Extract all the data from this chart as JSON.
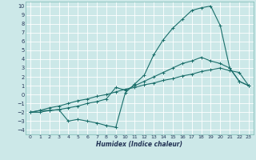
{
  "xlabel": "Humidex (Indice chaleur)",
  "bg_color": "#cce8e8",
  "grid_color": "#aad4d4",
  "line_color": "#1a6e6a",
  "xlim": [
    -0.5,
    23.5
  ],
  "ylim": [
    -4.5,
    10.5
  ],
  "xticks": [
    0,
    1,
    2,
    3,
    4,
    5,
    6,
    7,
    8,
    9,
    10,
    11,
    12,
    13,
    14,
    15,
    16,
    17,
    18,
    19,
    20,
    21,
    22,
    23
  ],
  "yticks": [
    -4,
    -3,
    -2,
    -1,
    0,
    1,
    2,
    3,
    4,
    5,
    6,
    7,
    8,
    9,
    10
  ],
  "line1_x": [
    0,
    1,
    2,
    3,
    4,
    5,
    6,
    7,
    8,
    9,
    10,
    11,
    12,
    13,
    14,
    15,
    16,
    17,
    18,
    19,
    20,
    21,
    22,
    23
  ],
  "line1_y": [
    -2,
    -2,
    -1.8,
    -1.7,
    -3,
    -2.8,
    -3,
    -3.2,
    -3.5,
    -3.7,
    0.2,
    1.2,
    2.2,
    4.5,
    6.2,
    7.5,
    8.5,
    9.5,
    9.8,
    10.0,
    7.8,
    3.0,
    1.5,
    1.0
  ],
  "line2_x": [
    0,
    1,
    2,
    3,
    4,
    5,
    6,
    7,
    8,
    9,
    10,
    11,
    12,
    13,
    14,
    15,
    16,
    17,
    18,
    19,
    20,
    21,
    22,
    23
  ],
  "line2_y": [
    -2,
    -1.8,
    -1.8,
    -1.7,
    -1.5,
    -1.3,
    -1.0,
    -0.8,
    -0.5,
    0.8,
    0.5,
    1.0,
    1.5,
    2.0,
    2.5,
    3.0,
    3.5,
    3.8,
    4.2,
    3.8,
    3.5,
    3.0,
    1.5,
    1.0
  ],
  "line3_x": [
    0,
    1,
    2,
    3,
    4,
    5,
    6,
    7,
    8,
    9,
    10,
    11,
    12,
    13,
    14,
    15,
    16,
    17,
    18,
    19,
    20,
    21,
    22,
    23
  ],
  "line3_y": [
    -2,
    -1.8,
    -1.5,
    -1.3,
    -1.0,
    -0.7,
    -0.5,
    -0.2,
    0.0,
    0.3,
    0.6,
    0.8,
    1.1,
    1.3,
    1.6,
    1.8,
    2.1,
    2.3,
    2.6,
    2.8,
    3.0,
    2.7,
    2.5,
    1.0
  ]
}
